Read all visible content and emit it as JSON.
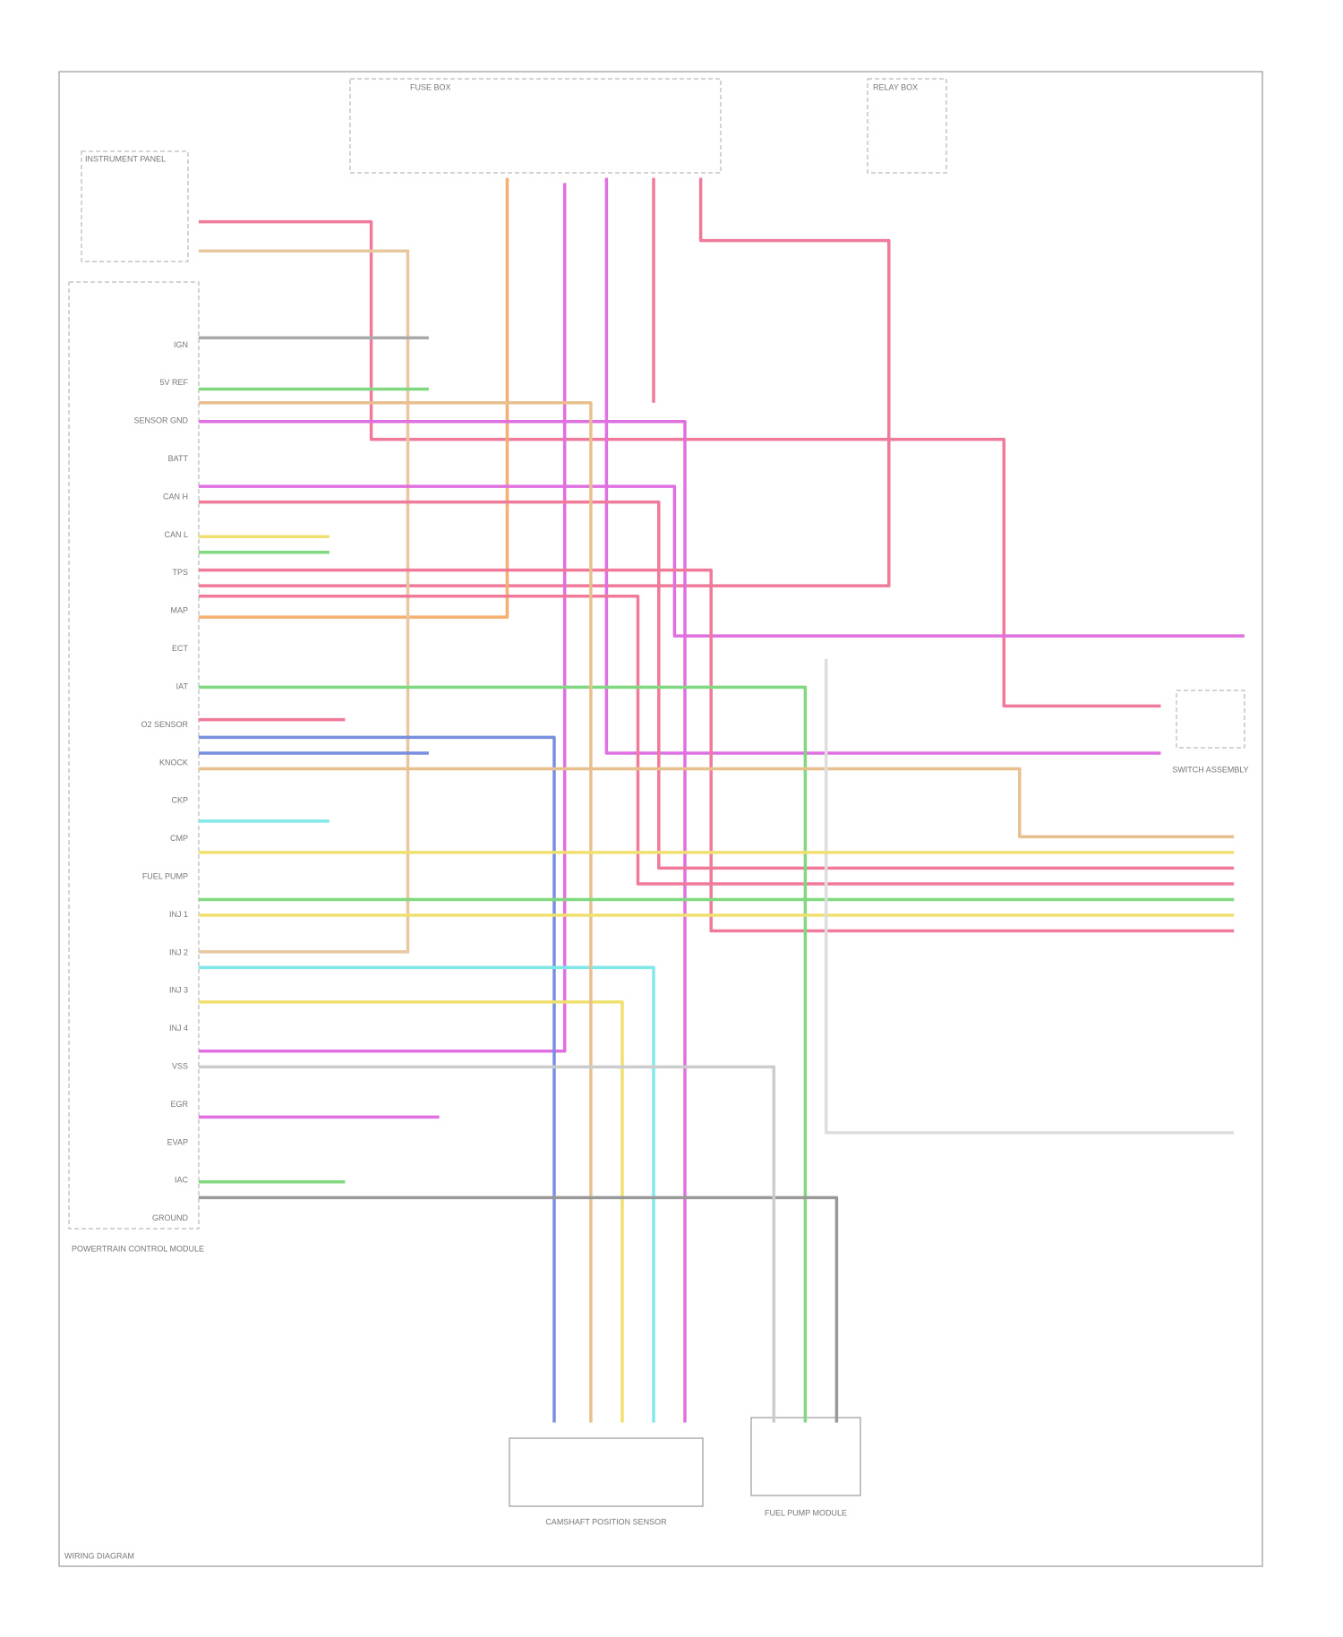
{
  "diagram": {
    "fuse_box": "FUSE BOX",
    "relay_box": "RELAY BOX",
    "left_component": "INSTRUMENT PANEL",
    "module": "POWERTRAIN CONTROL MODULE",
    "pins": [
      "IGN",
      "5V REF",
      "SENSOR GND",
      "BATT",
      "CAN H",
      "CAN L",
      "TPS",
      "MAP",
      "ECT",
      "IAT",
      "O2 SENSOR",
      "KNOCK",
      "CKP",
      "CMP",
      "FUEL PUMP",
      "INJ 1",
      "INJ 2",
      "INJ 3",
      "INJ 4",
      "VSS",
      "EGR",
      "EVAP",
      "IAC",
      "GROUND"
    ],
    "bottom_left_component": "CAMSHAFT POSITION SENSOR",
    "bottom_right_component": "FUEL PUMP MODULE",
    "right_component": "SWITCH ASSEMBLY",
    "footer": "WIRING DIAGRAM"
  }
}
